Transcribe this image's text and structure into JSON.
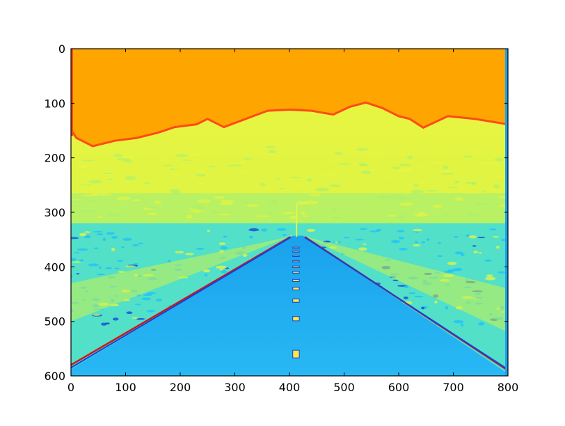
{
  "chart_data": {
    "type": "heatmap",
    "colormap": "jet",
    "title": "",
    "xlabel": "",
    "ylabel": "",
    "xlim": [
      0,
      800
    ],
    "ylim": [
      600,
      0
    ],
    "y_axis_inverted": true,
    "grid": false,
    "legend": "none",
    "x_ticks": [
      0,
      100,
      200,
      300,
      400,
      500,
      600,
      700,
      800
    ],
    "y_ticks": [
      0,
      100,
      200,
      300,
      400,
      500,
      600
    ],
    "x_tick_labels": [
      "0",
      "100",
      "200",
      "300",
      "400",
      "500",
      "600",
      "700",
      "800"
    ],
    "y_tick_labels": [
      "0",
      "100",
      "200",
      "300",
      "400",
      "500",
      "600"
    ],
    "image_content": "edge-filtered desert road photo rendered with jet colormap",
    "colors": {
      "sky": "#ffa500",
      "sky_edge": "#ff4a14",
      "mountains": "#ccf24a",
      "mountains_light": "#e8f540",
      "haze": "#a8f070",
      "desert": "#52e0c8",
      "desert_dark": "#1ec0ff",
      "road": "#28b8f4",
      "road_dark": "#1aa2ec",
      "deep_blue": "#1640d8",
      "red_line": "#d01418",
      "lane_marking": "#ffe640",
      "frame": "#000000"
    }
  }
}
